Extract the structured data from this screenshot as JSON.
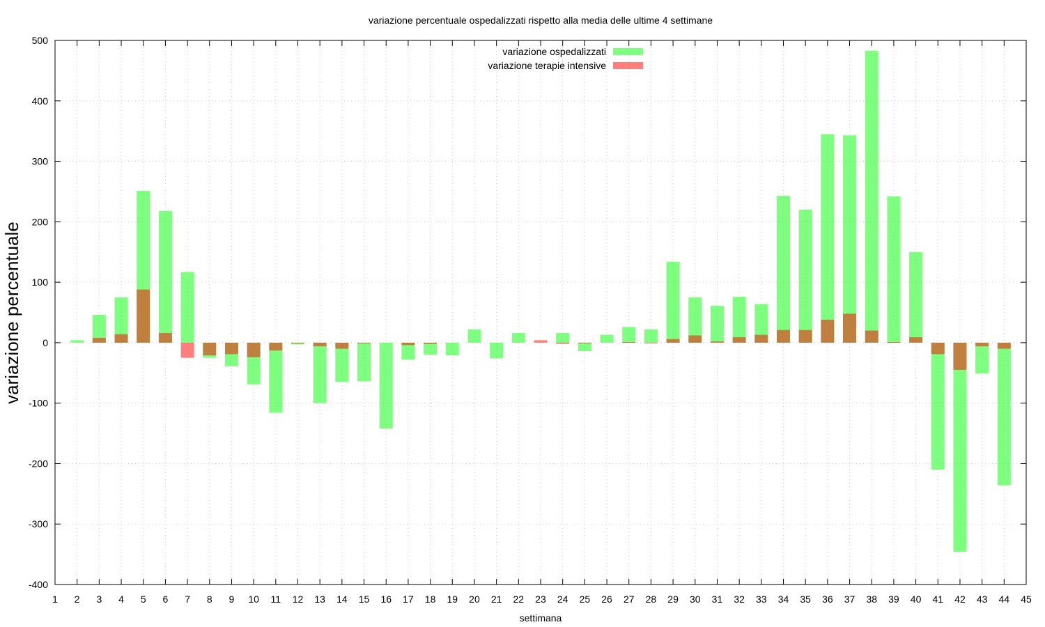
{
  "chart_data": {
    "type": "bar",
    "title": "variazione percentuale ospedalizzati rispetto alla media delle ultime 4 settimane",
    "xlabel": "settimana",
    "ylabel": "variazione percentuale",
    "xlim": [
      1,
      45
    ],
    "ylim": [
      -400,
      500
    ],
    "yticks": [
      -400,
      -300,
      -200,
      -100,
      0,
      100,
      200,
      300,
      400,
      500
    ],
    "xticks": [
      1,
      2,
      3,
      4,
      5,
      6,
      7,
      8,
      9,
      10,
      11,
      12,
      13,
      14,
      15,
      16,
      17,
      18,
      19,
      20,
      21,
      22,
      23,
      24,
      25,
      26,
      27,
      28,
      29,
      30,
      31,
      32,
      33,
      34,
      35,
      36,
      37,
      38,
      39,
      40,
      41,
      42,
      43,
      44,
      45
    ],
    "grid": true,
    "legend_position": "top-center",
    "categories": [
      2,
      3,
      4,
      5,
      6,
      7,
      8,
      9,
      10,
      11,
      12,
      13,
      14,
      15,
      16,
      17,
      18,
      19,
      20,
      21,
      22,
      23,
      24,
      25,
      26,
      27,
      28,
      29,
      30,
      31,
      32,
      33,
      34,
      35,
      36,
      37,
      38,
      39,
      40,
      41,
      42,
      43,
      44
    ],
    "series": [
      {
        "name": "variazione ospedalizzati",
        "color": "#00ff00",
        "opacity": 0.5,
        "values": [
          4,
          46,
          75,
          251,
          218,
          117,
          -25,
          -39,
          -69,
          -116,
          -3,
          -100,
          -65,
          -64,
          -142,
          -28,
          -20,
          -21,
          22,
          -26,
          16,
          0,
          16,
          -14,
          13,
          26,
          22,
          134,
          75,
          61,
          76,
          64,
          243,
          220,
          345,
          343,
          483,
          242,
          150,
          -210,
          -346,
          -51,
          -236
        ]
      },
      {
        "name": "variazione terapie intensive",
        "color": "#ff0000",
        "opacity": 0.5,
        "values": [
          0,
          8,
          14,
          88,
          16,
          -25,
          -21,
          -19,
          -24,
          -13,
          -1,
          -6,
          -10,
          -1,
          0,
          -4,
          -2,
          0,
          0,
          0,
          0,
          4,
          -2,
          -1,
          0,
          1,
          -1,
          6,
          12,
          2,
          9,
          13,
          21,
          21,
          38,
          48,
          20,
          1,
          9,
          -19,
          -45,
          -6,
          -10
        ]
      }
    ]
  }
}
